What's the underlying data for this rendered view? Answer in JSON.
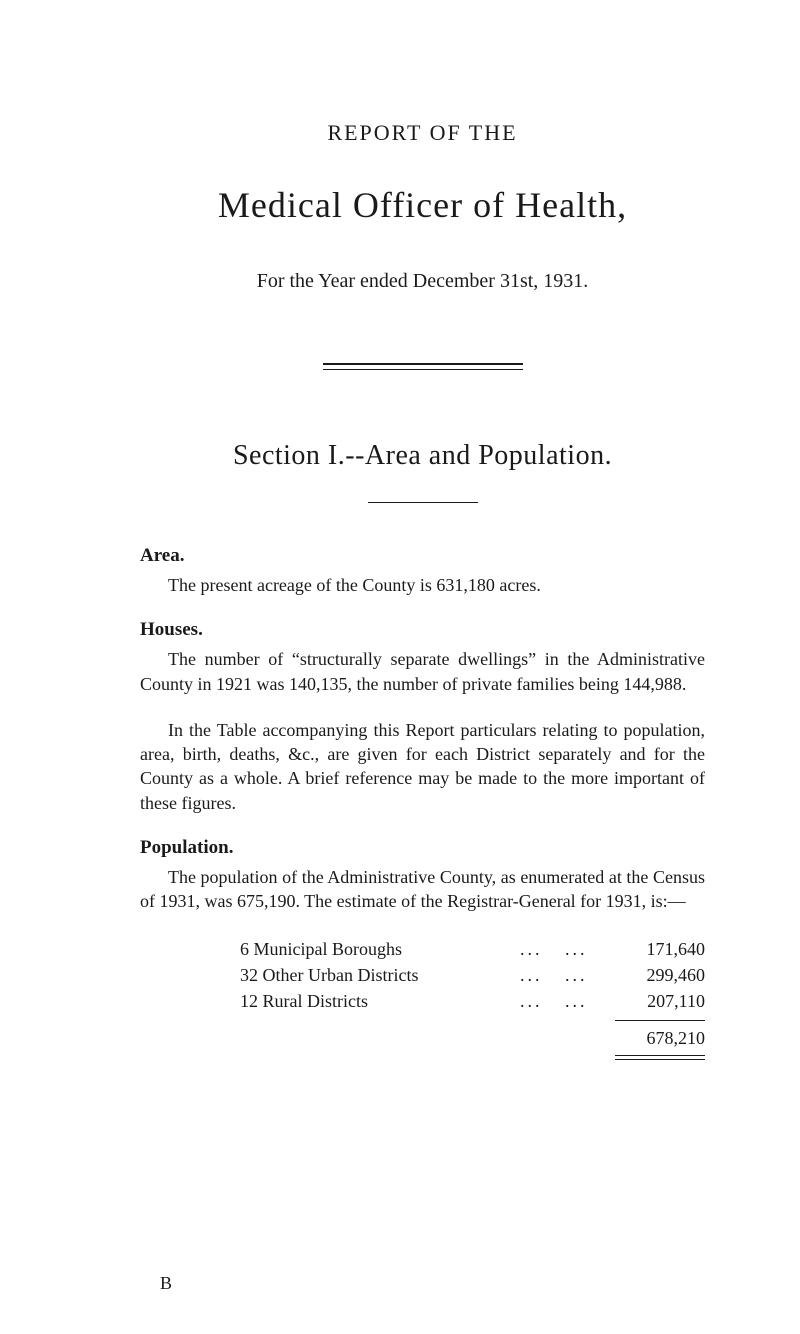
{
  "header": {
    "report_of": "REPORT OF THE",
    "title": "Medical Officer of Health,",
    "year_line": "For the Year ended December 31st, 1931."
  },
  "section": {
    "title": "Section I.--Area and Population."
  },
  "area": {
    "heading": "Area.",
    "text": "The present acreage of the County is 631,180 acres."
  },
  "houses": {
    "heading": "Houses.",
    "para1": "The number of “structurally separate dwellings” in the Administrative County in 1921 was 140,135, the number of private families being 144,988.",
    "para2": "In the Table accompanying this Report particulars relating to population, area, birth, deaths, &c., are given for each District separately and for the County as a whole. A brief reference may be made to the more important of these figures."
  },
  "population": {
    "heading": "Population.",
    "intro": "The population of the Administrative County, as enumerated at the Census of 1931, was 675,190. The estimate of the Registrar-General for 1931, is:—",
    "rows": [
      {
        "label": "6 Municipal Boroughs",
        "value": "171,640"
      },
      {
        "label": "32 Other Urban Districts",
        "value": "299,460"
      },
      {
        "label": "12 Rural Districts",
        "value": "207,110"
      }
    ],
    "total": "678,210"
  },
  "footer": {
    "sig": "B"
  },
  "style": {
    "background": "#ffffff",
    "text_color": "#1a1a1a",
    "body_fontsize": 18,
    "title_fontsize": 36,
    "section_fontsize": 28
  }
}
